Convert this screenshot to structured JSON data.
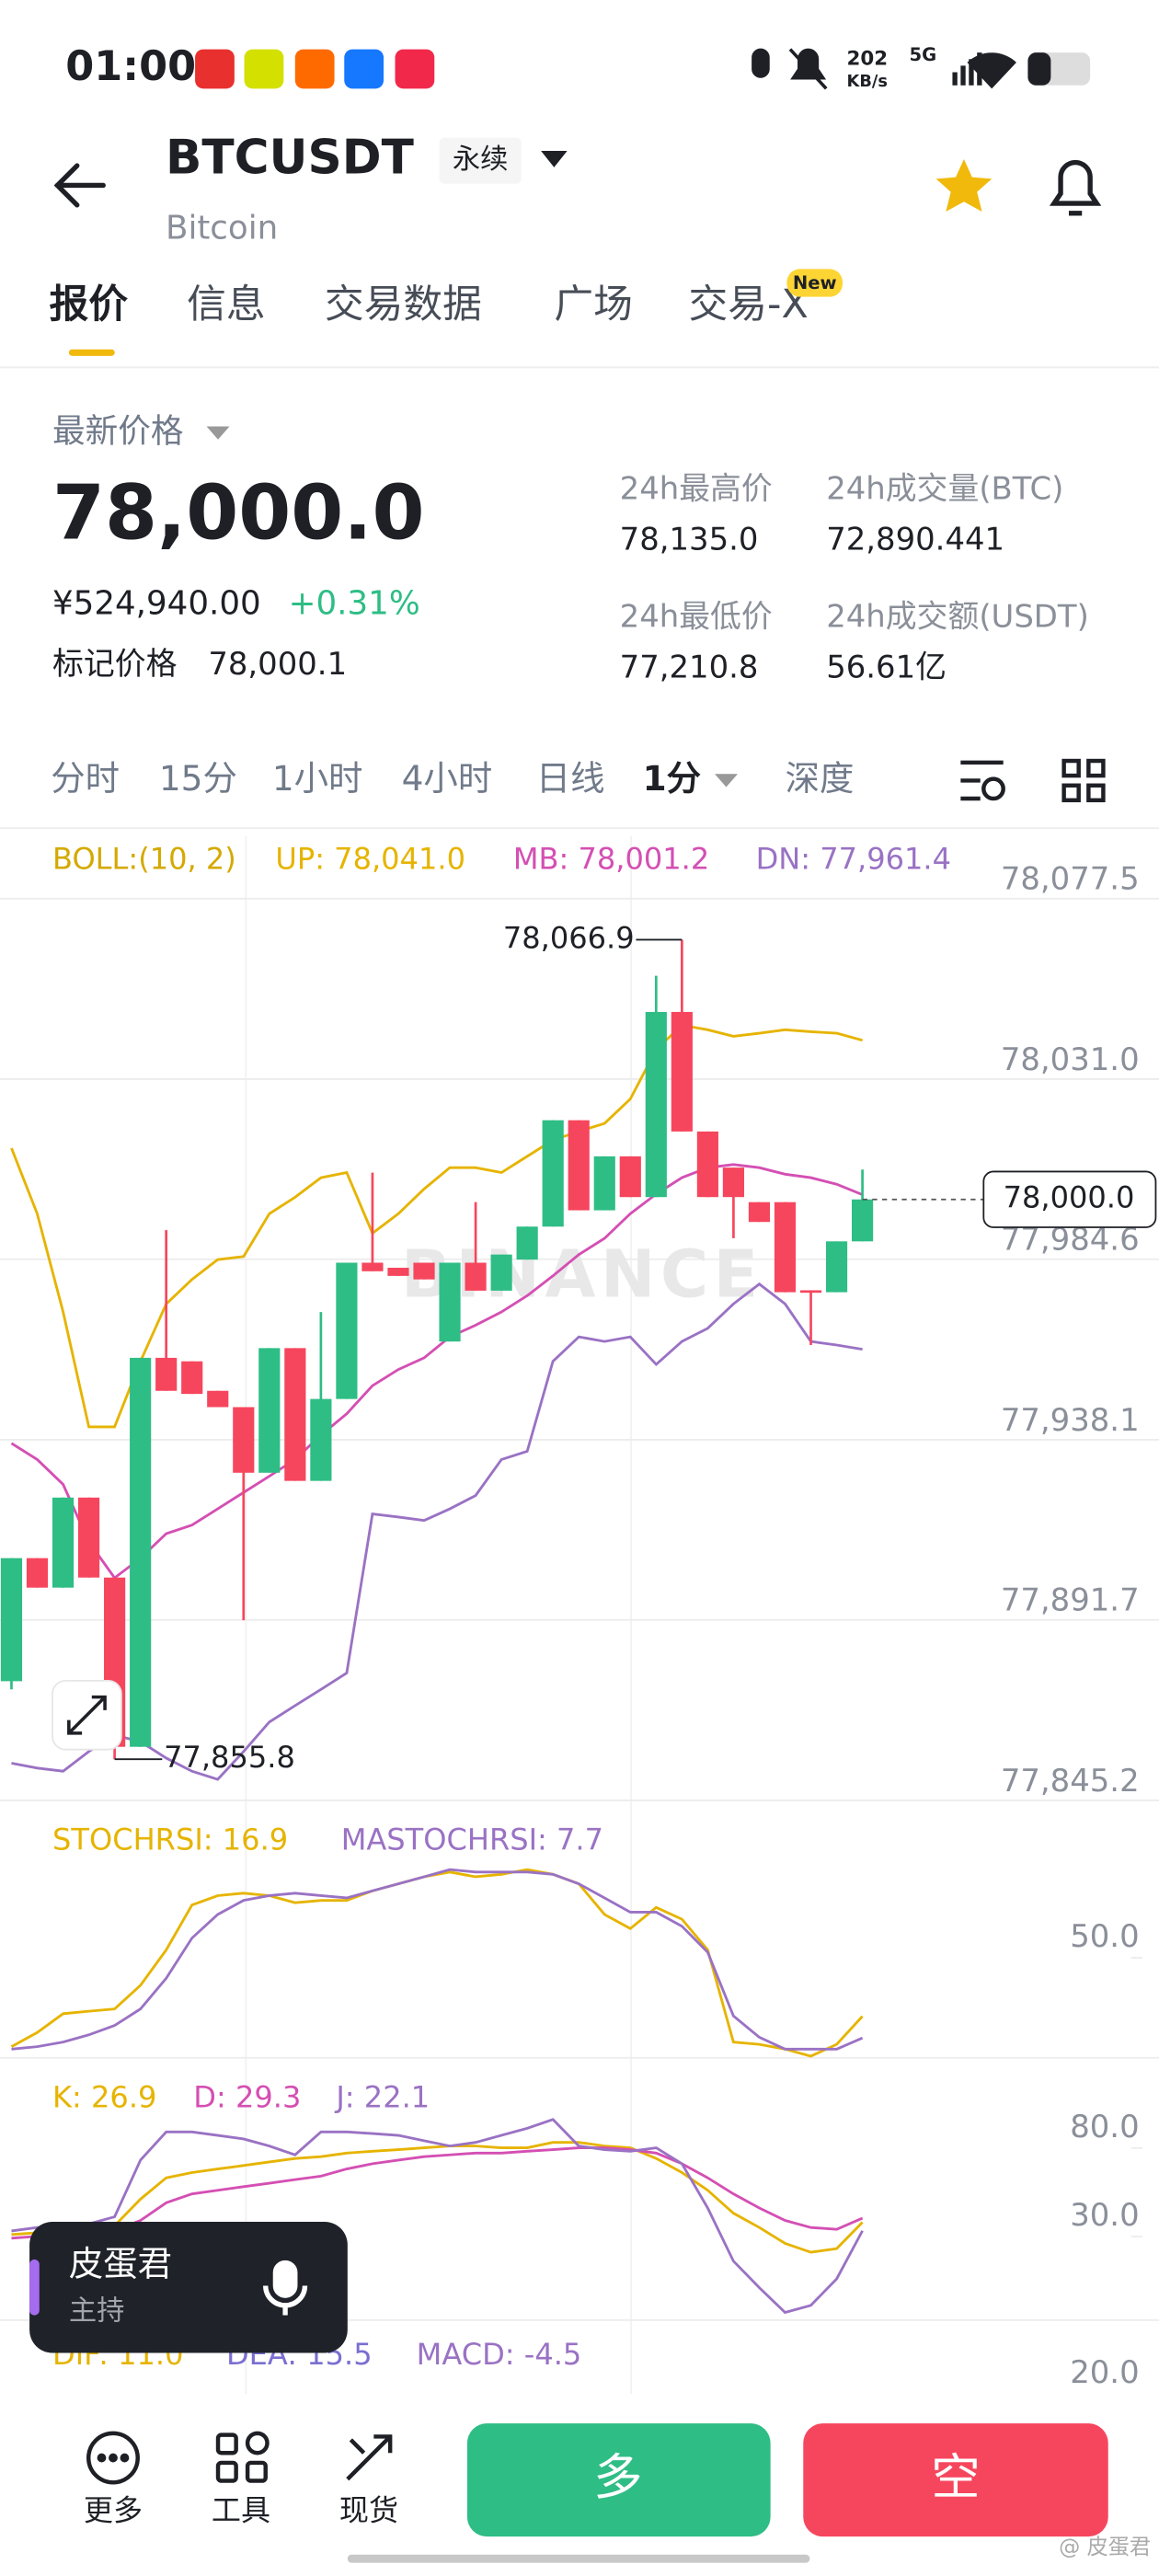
{
  "status_bar": {
    "time": "01:00",
    "net_speed": "202",
    "net_unit": "KB/s",
    "network": "5G"
  },
  "header": {
    "symbol": "BTCUSDT",
    "contract": "永续",
    "name": "Bitcoin"
  },
  "tabs": [
    "报价",
    "信息",
    "交易数据",
    "广场",
    "交易-X"
  ],
  "tab_badge": "New",
  "price_panel": {
    "label": "最新价格",
    "price": "78,000.0",
    "cny": "¥524,940.00",
    "change": "+0.31%",
    "mark_label": "标记价格",
    "mark_price": "78,000.1",
    "stats": [
      {
        "label": "24h最高价",
        "value": "78,135.0"
      },
      {
        "label": "24h成交量(BTC)",
        "value": "72,890.441"
      },
      {
        "label": "24h最低价",
        "value": "77,210.8"
      },
      {
        "label": "24h成交额(USDT)",
        "value": "56.61亿"
      }
    ]
  },
  "intervals": [
    "分时",
    "15分",
    "1小时",
    "4小时",
    "日线",
    "1分",
    "深度"
  ],
  "chart_data": {
    "type": "candlestick",
    "up_color": "#2ebd85",
    "down_color": "#f6465d",
    "open": [
      77875.9,
      77907.6,
      77900.0,
      77923.2,
      77902.6,
      77859.0,
      77959.2,
      77958.3,
      77950.7,
      77946.5,
      77929.6,
      77961.7,
      77927.5,
      77948.6,
      77983.7,
      77982.4,
      77983.7,
      77963.4,
      77983.7,
      77976.5,
      77984.5,
      77993.0,
      78020.4,
      77997.2,
      78011.1,
      78000.6,
      78048.3,
      78017.5,
      78008.2,
      77999.3,
      77999.3,
      77976.6,
      77976.1,
      77989.2
    ],
    "high": [
      77907.6,
      77907.6,
      77923.2,
      77923.2,
      77902.6,
      77959.2,
      77992.1,
      77958.3,
      77950.7,
      77946.5,
      77961.7,
      77961.7,
      77971.0,
      77983.7,
      78006.9,
      77982.4,
      77983.7,
      77983.7,
      77999.3,
      77985.8,
      77993.0,
      78020.4,
      78020.4,
      78011.1,
      78011.1,
      78057.6,
      78066.9,
      78017.5,
      78008.2,
      77999.3,
      77999.3,
      77976.6,
      77989.2,
      78007.7
    ],
    "low": [
      77873.8,
      77900.0,
      77900.0,
      77902.6,
      77855.8,
      77859.0,
      77950.7,
      77949.9,
      77946.5,
      77891.6,
      77929.6,
      77927.5,
      77927.5,
      77948.6,
      77981.5,
      77980.3,
      77979.4,
      77963.4,
      77976.5,
      77976.5,
      77984.5,
      77993.0,
      77997.2,
      77997.2,
      78000.6,
      78000.6,
      78017.5,
      78000.6,
      77990.0,
      77994.2,
      77976.1,
      77962.5,
      77976.1,
      77989.2
    ],
    "close": [
      77907.6,
      77900.0,
      77923.2,
      77902.6,
      77859.0,
      77959.2,
      77950.7,
      77949.9,
      77946.5,
      77929.6,
      77961.7,
      77927.5,
      77948.6,
      77983.7,
      77981.5,
      77980.3,
      77979.4,
      77983.7,
      77976.5,
      77985.8,
      77993.0,
      78020.4,
      77997.2,
      78011.1,
      78000.6,
      78048.3,
      78017.5,
      78000.6,
      78000.6,
      77994.2,
      77976.1,
      77976.1,
      77989.2,
      78000.0
    ],
    "ylim": [
      77845.2,
      78092.7
    ],
    "yticks": [
      {
        "value": 78077.5,
        "label": "78,077.5"
      },
      {
        "value": 78031.0,
        "label": "78,031.0"
      },
      {
        "value": 77984.6,
        "label": "77,984.6"
      },
      {
        "value": 77938.1,
        "label": "77,938.1"
      },
      {
        "value": 77891.7,
        "label": "77,891.7"
      },
      {
        "value": 77845.2,
        "label": "77,845.2"
      }
    ],
    "grid": true,
    "high_label": {
      "value": 78066.9,
      "label": "78,066.9"
    },
    "low_label": {
      "value": 77855.8,
      "label": "77,855.8"
    },
    "last_price": {
      "value": 78000.0,
      "label": "78,000.0"
    },
    "watermark": "BINANCE",
    "boll": {
      "label": "BOLL:(10, 2)",
      "label_color": "#d4a900",
      "series": [
        {
          "name": "UP: 78,041.0",
          "color": "#e6b400",
          "values": [
            78013.2,
            77996.3,
            77971.0,
            77941.4,
            77941.4,
            77958.3,
            77973.1,
            77979.4,
            77984.5,
            77985.3,
            77996.3,
            78000.6,
            78005.6,
            78006.9,
            77991.3,
            77996.3,
            78002.7,
            78008.2,
            78008.2,
            78006.9,
            78011.1,
            78015.3,
            78017.5,
            78019.6,
            78025.9,
            78038.6,
            78044.9,
            78043.7,
            78042.0,
            78042.8,
            78043.7,
            78043.2,
            78042.8,
            78041.0
          ]
        },
        {
          "name": "MB: 78,001.2",
          "color": "#d44fb3",
          "values": [
            77937.2,
            77933.0,
            77926.6,
            77911.8,
            77902.5,
            77907.6,
            77913.9,
            77916.1,
            77920.3,
            77924.5,
            77928.7,
            77933.0,
            77939.3,
            77944.8,
            77952.0,
            77956.2,
            77959.2,
            77964.6,
            77967.6,
            77971.0,
            77975.2,
            77980.3,
            77985.8,
            77990.0,
            77996.3,
            78001.4,
            78005.6,
            78008.2,
            78009.0,
            78008.2,
            78006.5,
            78005.6,
            78003.9,
            78001.2
          ]
        },
        {
          "name": "DN: 77,961.4",
          "color": "#9a72c4",
          "values": [
            77854.8,
            77853.5,
            77852.7,
            77857.8,
            77862.0,
            77860.3,
            77856.1,
            77852.7,
            77850.6,
            77857.8,
            77865.4,
            77869.6,
            77873.8,
            77878.0,
            77919.0,
            77918.2,
            77917.3,
            77920.3,
            77923.7,
            77933.0,
            77935.1,
            77958.3,
            77964.6,
            77963.4,
            77964.6,
            77957.5,
            77963.4,
            77966.8,
            77973.1,
            77978.2,
            77973.1,
            77963.4,
            77962.5,
            77961.4
          ]
        }
      ]
    },
    "stochrsi": {
      "ylim": [
        0,
        100
      ],
      "yticks": [
        {
          "value": 50,
          "label": "50.0"
        }
      ],
      "series": [
        {
          "name": "STOCHRSI: 16.9",
          "color": "#e6b400",
          "values": [
            4,
            10,
            18,
            19,
            20,
            30,
            45,
            64,
            68,
            69,
            68,
            65,
            66,
            66,
            70,
            73,
            76,
            78,
            76,
            77,
            79,
            77,
            73,
            60,
            54,
            63,
            58,
            45,
            6,
            5,
            3,
            0,
            5,
            16.9
          ]
        },
        {
          "name": "MASTOCHRSI: 7.7",
          "color": "#9a72c4",
          "values": [
            3,
            4,
            6,
            9,
            13,
            20,
            33,
            50,
            60,
            66,
            68,
            69,
            68,
            67,
            70,
            73,
            76,
            79,
            78,
            78,
            78,
            77,
            73,
            67,
            61,
            61,
            55,
            44,
            17,
            8,
            3,
            3,
            3,
            7.7
          ]
        }
      ]
    },
    "kdj": {
      "ylim": [
        -30,
        100
      ],
      "yticks": [
        {
          "value": 80,
          "label": "80.0"
        },
        {
          "value": 30,
          "label": "30.0"
        }
      ],
      "series": [
        {
          "name": "K: 26.9",
          "color": "#e6b400",
          "values": [
            20,
            21,
            22,
            22,
            25,
            40,
            52,
            55,
            57,
            59,
            61,
            63,
            64,
            66,
            67,
            68,
            69,
            70,
            70,
            69,
            69,
            72,
            72,
            70,
            69,
            63,
            55,
            45,
            32,
            24,
            15,
            10,
            12,
            26.9
          ]
        },
        {
          "name": "D: 29.3",
          "color": "#d44fb3",
          "values": [
            18,
            19,
            20,
            20,
            22,
            28,
            38,
            43,
            45,
            47,
            49,
            51,
            53,
            57,
            60,
            62,
            64,
            65,
            66,
            66,
            67,
            68,
            69,
            69,
            68,
            66,
            60,
            52,
            43,
            35,
            28,
            24,
            23,
            29.3
          ]
        },
        {
          "name": "J: 22.1",
          "color": "#9a72c4",
          "values": [
            22,
            24,
            25,
            26,
            30,
            62,
            78,
            78,
            76,
            74,
            70,
            65,
            78,
            78,
            77,
            76,
            73,
            70,
            72,
            76,
            80,
            85,
            70,
            68,
            67,
            69,
            60,
            35,
            5,
            -10,
            -24,
            -20,
            -5,
            22.1
          ]
        }
      ]
    },
    "macd": {
      "yticks": [
        {
          "value": 20,
          "label": "20.0"
        }
      ],
      "series": [
        {
          "name": "DIF: 11.0",
          "color": "#e6b400"
        },
        {
          "name": "DEA: 15.5",
          "color": "#7a6fd0"
        },
        {
          "name": "MACD: -4.5",
          "color": "#9a72c4"
        }
      ]
    }
  },
  "live_overlay": {
    "name": "皮蛋君",
    "role": "主持"
  },
  "bottom_bar": {
    "more": "更多",
    "tools": "工具",
    "spot": "现货",
    "long": "多",
    "short": "空"
  },
  "watermark": "@ 皮蛋君"
}
